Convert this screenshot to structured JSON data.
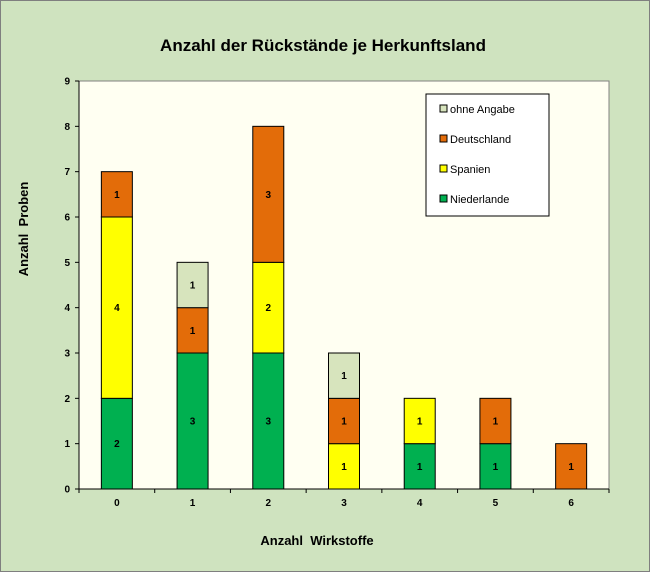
{
  "chart_data": {
    "type": "bar",
    "stacked": true,
    "title": "Anzahl der Rückstände je Herkunftsland",
    "xlabel": "Anzahl  Wirkstoffe",
    "ylabel": "Anzahl  Proben",
    "categories": [
      "0",
      "1",
      "2",
      "3",
      "4",
      "5",
      "6"
    ],
    "ylim": [
      0,
      9
    ],
    "yticks": [
      0,
      1,
      2,
      3,
      4,
      5,
      6,
      7,
      8,
      9
    ],
    "legend_position": "top-right",
    "series": [
      {
        "name": "Niederlande",
        "color": "#00b050",
        "values": [
          2,
          3,
          3,
          0,
          1,
          1,
          0
        ]
      },
      {
        "name": "Spanien",
        "color": "#ffff00",
        "values": [
          4,
          0,
          2,
          1,
          1,
          0,
          0
        ]
      },
      {
        "name": "Deutschland",
        "color": "#e36c09",
        "values": [
          1,
          1,
          3,
          1,
          0,
          1,
          1
        ]
      },
      {
        "name": "ohne Angabe",
        "color": "#d7e4bd",
        "values": [
          0,
          1,
          0,
          1,
          0,
          0,
          0
        ]
      }
    ],
    "legend_order": [
      "ohne Angabe",
      "Deutschland",
      "Spanien",
      "Niederlande"
    ]
  }
}
